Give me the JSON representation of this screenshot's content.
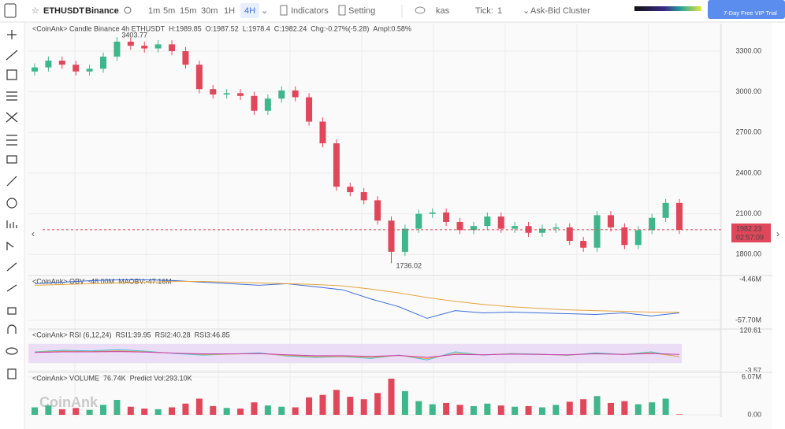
{
  "toolbar": {
    "symbol": "ETHUSDT",
    "exchange": "Binance",
    "intervals": [
      "1m",
      "5m",
      "15m",
      "30m",
      "1H",
      "4H"
    ],
    "indicators": "Indicators",
    "setting": "Setting",
    "theme": "kas",
    "tick_label": "Tick:",
    "tick_value": "1",
    "cluster": "Ask-Bid Cluster",
    "vip": "7-Day Free VIP Trial"
  },
  "watermark": "CoinAnk",
  "chart_data": [
    {
      "type": "candlestick",
      "legend": [
        {
          "text": "<CoinAnk> Candle  Binance 4h ETHUSDT",
          "color": "#444"
        },
        {
          "text": "H:1989.85",
          "color": "#e0475a"
        },
        {
          "text": "O:1987.52",
          "color": "#e0475a"
        },
        {
          "text": "L:1978.4",
          "color": "#e0475a"
        },
        {
          "text": "C:1982.24",
          "color": "#e0475a"
        },
        {
          "text": "Chg:-0.27%(-5.28)",
          "color": "#e0475a"
        },
        {
          "text": "Ampl:0.58%",
          "color": "#e0475a"
        }
      ],
      "up_color": "#3fb68b",
      "down_color": "#e0475a",
      "open": [
        3150,
        3180,
        3230,
        3200,
        3150,
        3170,
        3260,
        3370,
        3340,
        3320,
        3350,
        3300,
        3200,
        3020,
        2980,
        2990,
        2970,
        2860,
        2950,
        3010,
        2960,
        2780,
        2620,
        2300,
        2260,
        2200,
        2050,
        1820,
        1990,
        2100,
        2110,
        2040,
        1980,
        2010,
        2080,
        1990,
        2010,
        1960,
        1990,
        2000,
        1900,
        1850,
        2090,
        2000,
        1870,
        1980,
        2070,
        2180
      ],
      "high": [
        3210,
        3260,
        3260,
        3230,
        3200,
        3290,
        3403.77,
        3400,
        3370,
        3380,
        3380,
        3330,
        3230,
        3050,
        3020,
        3020,
        3000,
        2980,
        3040,
        3040,
        2990,
        2810,
        2650,
        2330,
        2290,
        2230,
        2080,
        2020,
        2130,
        2140,
        2140,
        2070,
        2040,
        2110,
        2110,
        2040,
        2040,
        2020,
        2030,
        2030,
        1930,
        2120,
        2120,
        2030,
        2010,
        2100,
        2210,
        2210
      ],
      "low": [
        3120,
        3150,
        3170,
        3120,
        3120,
        3140,
        3230,
        3310,
        3290,
        3290,
        3270,
        3170,
        2990,
        2950,
        2950,
        2940,
        2830,
        2830,
        2920,
        2930,
        2750,
        2590,
        2270,
        2230,
        2170,
        2020,
        1736.02,
        1790,
        1960,
        2070,
        2010,
        1950,
        1950,
        1980,
        1960,
        1960,
        1930,
        1930,
        1960,
        1870,
        1820,
        1820,
        1970,
        1840,
        1840,
        1950,
        2040,
        1952
      ],
      "close": [
        3180,
        3230,
        3200,
        3150,
        3170,
        3260,
        3370,
        3340,
        3320,
        3350,
        3300,
        3200,
        3020,
        2980,
        2990,
        2970,
        2860,
        2950,
        3010,
        2960,
        2780,
        2620,
        2300,
        2260,
        2200,
        2050,
        1820,
        1990,
        2100,
        2110,
        2040,
        1980,
        2010,
        2080,
        1990,
        2010,
        1960,
        1990,
        2000,
        1900,
        1850,
        2090,
        2000,
        1870,
        1980,
        2070,
        2180,
        1982
      ],
      "last_price": 1982.23,
      "countdown": "02:57:09",
      "ylim": [
        1645,
        3445
      ],
      "yticks": [
        {
          "value": 1800,
          "label": "1800.00"
        },
        {
          "value": 2100,
          "label": "2100.00"
        },
        {
          "value": 2400,
          "label": "2400.00"
        },
        {
          "value": 2700,
          "label": "2700.00"
        },
        {
          "value": 3000,
          "label": "3000.00"
        },
        {
          "value": 3300,
          "label": "3300.00"
        }
      ]
    },
    {
      "type": "line",
      "legend": [
        {
          "text": "<CoinAnk> OBV",
          "color": "#444"
        },
        {
          "text": "-48.00M",
          "color": "#3b6fd8"
        },
        {
          "text": "MAOBV:-47.16M",
          "color": "#e8a33a"
        }
      ],
      "series": [
        {
          "color": "#3b6fd8",
          "values": [
            -10,
            -8,
            -6,
            -5,
            -5,
            -6,
            -8,
            -10,
            -12,
            -10,
            -14,
            -18,
            -30,
            -40,
            -55,
            -45,
            -48,
            -47,
            -48,
            -49,
            -50,
            -48,
            -52,
            -48
          ]
        },
        {
          "color": "#e8a33a",
          "values": [
            -12,
            -11,
            -10,
            -9,
            -8,
            -7,
            -7,
            -8,
            -9,
            -10,
            -11,
            -13,
            -17,
            -22,
            -28,
            -33,
            -37,
            -40,
            -42,
            -44,
            -45,
            -46,
            -47,
            -47.16
          ]
        }
      ],
      "ylim": [
        -65.9,
        -1.39
      ],
      "yticks": [
        {
          "value": -4.46,
          "label": "-4.46M"
        },
        {
          "value": -57.7,
          "label": "-57.70M"
        }
      ]
    },
    {
      "type": "line",
      "legend": [
        {
          "text": "<CoinAnk> RSI  (6,12,24)",
          "color": "#444"
        },
        {
          "text": "RSI1:39.95",
          "color": "#35c6d6"
        },
        {
          "text": "RSI2:40.28",
          "color": "#e8a33a"
        },
        {
          "text": "RSI3:46.85",
          "color": "#c93fb5"
        }
      ],
      "band": [
        20,
        80
      ],
      "band_color": "#e9d6f5",
      "series": [
        {
          "color": "#35c6d6",
          "values": [
            55,
            60,
            58,
            62,
            57,
            50,
            45,
            48,
            52,
            42,
            38,
            40,
            35,
            45,
            30,
            55,
            45,
            50,
            48,
            44,
            52,
            47,
            55,
            39.95
          ]
        },
        {
          "color": "#e8a33a",
          "values": [
            54,
            57,
            56,
            58,
            55,
            51,
            47,
            48,
            50,
            44,
            40,
            41,
            38,
            44,
            34,
            50,
            46,
            49,
            47,
            45,
            50,
            47,
            52,
            40.28
          ]
        },
        {
          "color": "#c93fb5",
          "values": [
            53,
            55,
            55,
            56,
            54,
            51,
            49,
            49,
            50,
            46,
            43,
            43,
            41,
            44,
            38,
            47,
            46,
            48,
            47,
            46,
            49,
            47,
            50,
            46.85
          ]
        }
      ],
      "ylim": [
        -6.05,
        120.96
      ],
      "yticks": [
        120.61,
        -3.57
      ]
    },
    {
      "type": "bar",
      "legend": [
        {
          "text": "<CoinAnk> VOLUME",
          "color": "#444"
        },
        {
          "text": "76.74K",
          "color": "#e0475a"
        },
        {
          "text": "Predict Vol:293.10K",
          "color": "#444"
        }
      ],
      "values": [
        1.2,
        1.5,
        0.9,
        1.1,
        0.8,
        1.6,
        2.4,
        1.3,
        1.0,
        0.9,
        1.2,
        1.8,
        2.6,
        1.4,
        1.1,
        1.0,
        2.0,
        1.5,
        1.3,
        1.2,
        2.8,
        3.2,
        4.0,
        2.9,
        2.5,
        3.5,
        5.8,
        3.8,
        2.2,
        1.7,
        1.9,
        1.6,
        1.4,
        1.8,
        1.5,
        1.3,
        1.4,
        1.2,
        1.6,
        2.1,
        2.5,
        3.0,
        1.9,
        2.2,
        1.7,
        2.0,
        2.6,
        0.07674
      ],
      "ylim": [
        0,
        6.57
      ],
      "yticks": [
        {
          "value": 6.07,
          "label": "6.07M"
        },
        {
          "value": 0,
          "label": "0.00"
        }
      ]
    }
  ]
}
